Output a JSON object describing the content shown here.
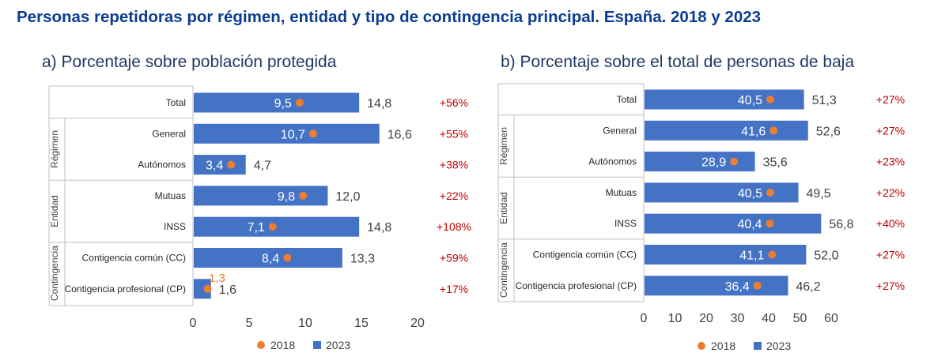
{
  "title": "Personas repetidoras por régimen, entidad y tipo de contingencia principal. España. 2018 y 2023",
  "colors": {
    "bar": "#4472C4",
    "dot": "#ED7D31",
    "pct": "#C00000",
    "title": "#0B3D91",
    "subtitle": "#1F3864"
  },
  "chart_data": [
    {
      "type": "bar",
      "title": "a) Porcentaje sobre población protegida",
      "orientation": "horizontal",
      "categories": [
        "Total",
        "General",
        "Autónomos",
        "Mutuas",
        "INSS",
        "Contigencia común (CC)",
        "Contigencia profesional (CP)"
      ],
      "groups": [
        {
          "label": "Régimen",
          "categories": [
            "General",
            "Autónomos"
          ]
        },
        {
          "label": "Entidad",
          "categories": [
            "Mutuas",
            "INSS"
          ]
        },
        {
          "label": "Contingencia",
          "categories": [
            "Contigencia común (CC)",
            "Contigencia profesional (CP)"
          ]
        }
      ],
      "series": [
        {
          "name": "2018",
          "marker": "dot",
          "values": [
            9.5,
            10.7,
            3.4,
            9.8,
            7.1,
            8.4,
            1.3
          ],
          "labels": [
            "9,5",
            "10,7",
            "3,4",
            "9,8",
            "7,1",
            "8,4",
            "1,3"
          ]
        },
        {
          "name": "2023",
          "marker": "bar",
          "values": [
            14.8,
            16.6,
            4.7,
            12.0,
            14.8,
            13.3,
            1.6
          ],
          "labels": [
            "14,8",
            "16,6",
            "4,7",
            "12,0",
            "14,8",
            "13,3",
            "1,6"
          ]
        }
      ],
      "change_labels": [
        "+56%",
        "+55%",
        "+38%",
        "+22%",
        "+108%",
        "+59%",
        "+17%"
      ],
      "xlim": [
        0,
        20
      ],
      "xticks": [
        "0",
        "5",
        "10",
        "15",
        "20"
      ],
      "legend": [
        "2018",
        "2023"
      ],
      "legend_position": "bottom",
      "grid": false
    },
    {
      "type": "bar",
      "title": "b) Porcentaje sobre el total de personas de baja",
      "orientation": "horizontal",
      "categories": [
        "Total",
        "General",
        "Autónomos",
        "Mutuas",
        "INSS",
        "Contigencia común (CC)",
        "Contigencia profesional (CP)"
      ],
      "groups": [
        {
          "label": "Régimen",
          "categories": [
            "General",
            "Autónomos"
          ]
        },
        {
          "label": "Entidad",
          "categories": [
            "Mutuas",
            "INSS"
          ]
        },
        {
          "label": "Contingencia",
          "categories": [
            "Contigencia común (CC)",
            "Contigencia profesional (CP)"
          ]
        }
      ],
      "series": [
        {
          "name": "2018",
          "marker": "dot",
          "values": [
            40.5,
            41.6,
            28.9,
            40.5,
            40.4,
            41.1,
            36.4
          ],
          "labels": [
            "40,5",
            "41,6",
            "28,9",
            "40,5",
            "40,4",
            "41,1",
            "36,4"
          ]
        },
        {
          "name": "2023",
          "marker": "bar",
          "values": [
            51.3,
            52.6,
            35.6,
            49.5,
            56.8,
            52.0,
            46.2
          ],
          "labels": [
            "51,3",
            "52,6",
            "35,6",
            "49,5",
            "56,8",
            "52,0",
            "46,2"
          ]
        }
      ],
      "change_labels": [
        "+27%",
        "+27%",
        "+23%",
        "+22%",
        "+40%",
        "+27%",
        "+27%"
      ],
      "xlim": [
        0,
        60
      ],
      "xticks": [
        "0",
        "10",
        "20",
        "30",
        "40",
        "50",
        "60"
      ],
      "legend": [
        "2018",
        "2023"
      ],
      "legend_position": "bottom",
      "grid": false
    }
  ]
}
